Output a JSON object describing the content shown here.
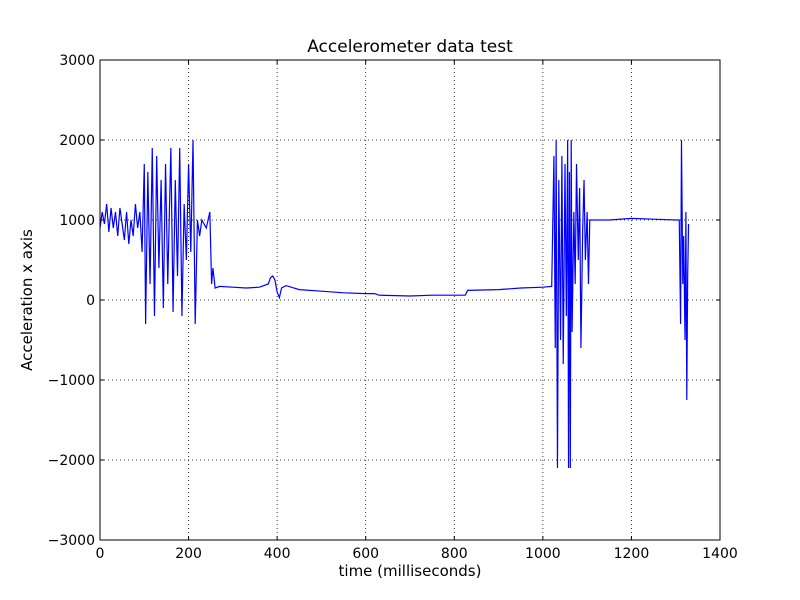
{
  "chart_data": {
    "type": "line",
    "title": "Accelerometer data test",
    "xlabel": "time (milliseconds)",
    "ylabel": "Acceleration x axis",
    "xlim": [
      0,
      1400
    ],
    "xticks": [
      0,
      200,
      400,
      600,
      800,
      1000,
      1200,
      1400
    ],
    "ylim": [
      -3000,
      3000
    ],
    "yticks": [
      {
        "value": -3000,
        "label": "−3000"
      },
      {
        "value": -2000,
        "label": "−2000"
      },
      {
        "value": -1000,
        "label": "−1000"
      },
      0,
      1000,
      2000,
      3000
    ],
    "grid": true,
    "x": [
      0,
      5,
      10,
      15,
      20,
      25,
      30,
      35,
      40,
      45,
      50,
      55,
      60,
      65,
      70,
      75,
      80,
      85,
      90,
      95,
      100,
      103,
      108,
      113,
      118,
      123,
      128,
      133,
      138,
      143,
      148,
      153,
      160,
      165,
      170,
      175,
      180,
      185,
      190,
      195,
      200,
      205,
      210,
      215,
      220,
      225,
      230,
      240,
      248,
      252,
      255,
      260,
      270,
      300,
      330,
      360,
      380,
      385,
      390,
      395,
      400,
      405,
      410,
      420,
      450,
      500,
      550,
      600,
      620,
      630,
      700,
      750,
      800,
      825,
      830,
      900,
      950,
      1000,
      1020,
      1025,
      1028,
      1030,
      1033,
      1036,
      1040,
      1043,
      1046,
      1050,
      1053,
      1056,
      1058,
      1060,
      1062,
      1064,
      1066,
      1070,
      1073,
      1076,
      1080,
      1083,
      1086,
      1090,
      1093,
      1096,
      1100,
      1103,
      1106,
      1150,
      1200,
      1250,
      1300,
      1308,
      1311,
      1313,
      1316,
      1318,
      1321,
      1323,
      1325,
      1327,
      1329
    ],
    "series": [
      {
        "color": "#0000ff",
        "values": [
          900,
          1100,
          950,
          1200,
          850,
          1150,
          900,
          1100,
          800,
          1150,
          950,
          750,
          1100,
          700,
          1000,
          800,
          1200,
          900,
          1100,
          600,
          1700,
          -300,
          1600,
          200,
          1900,
          -200,
          1800,
          400,
          1500,
          -100,
          1700,
          200,
          1900,
          -150,
          1500,
          300,
          1900,
          -200,
          1200,
          500,
          1700,
          600,
          2000,
          -300,
          1000,
          800,
          1000,
          900,
          1100,
          200,
          400,
          150,
          170,
          160,
          150,
          160,
          200,
          280,
          300,
          250,
          100,
          30,
          150,
          180,
          130,
          110,
          90,
          80,
          80,
          60,
          50,
          60,
          60,
          60,
          120,
          130,
          150,
          160,
          170,
          1800,
          -600,
          2000,
          -2100,
          1500,
          -500,
          1800,
          -800,
          1700,
          -200,
          2000,
          -2100,
          1600,
          -2100,
          2000,
          -400,
          1100,
          200,
          1700,
          500,
          1400,
          -600,
          900,
          1500,
          500,
          1100,
          200,
          1000,
          1000,
          1020,
          1010,
          1000,
          1000,
          -300,
          2000,
          200,
          800,
          -500,
          1100,
          -1250,
          300,
          950
        ]
      }
    ]
  }
}
